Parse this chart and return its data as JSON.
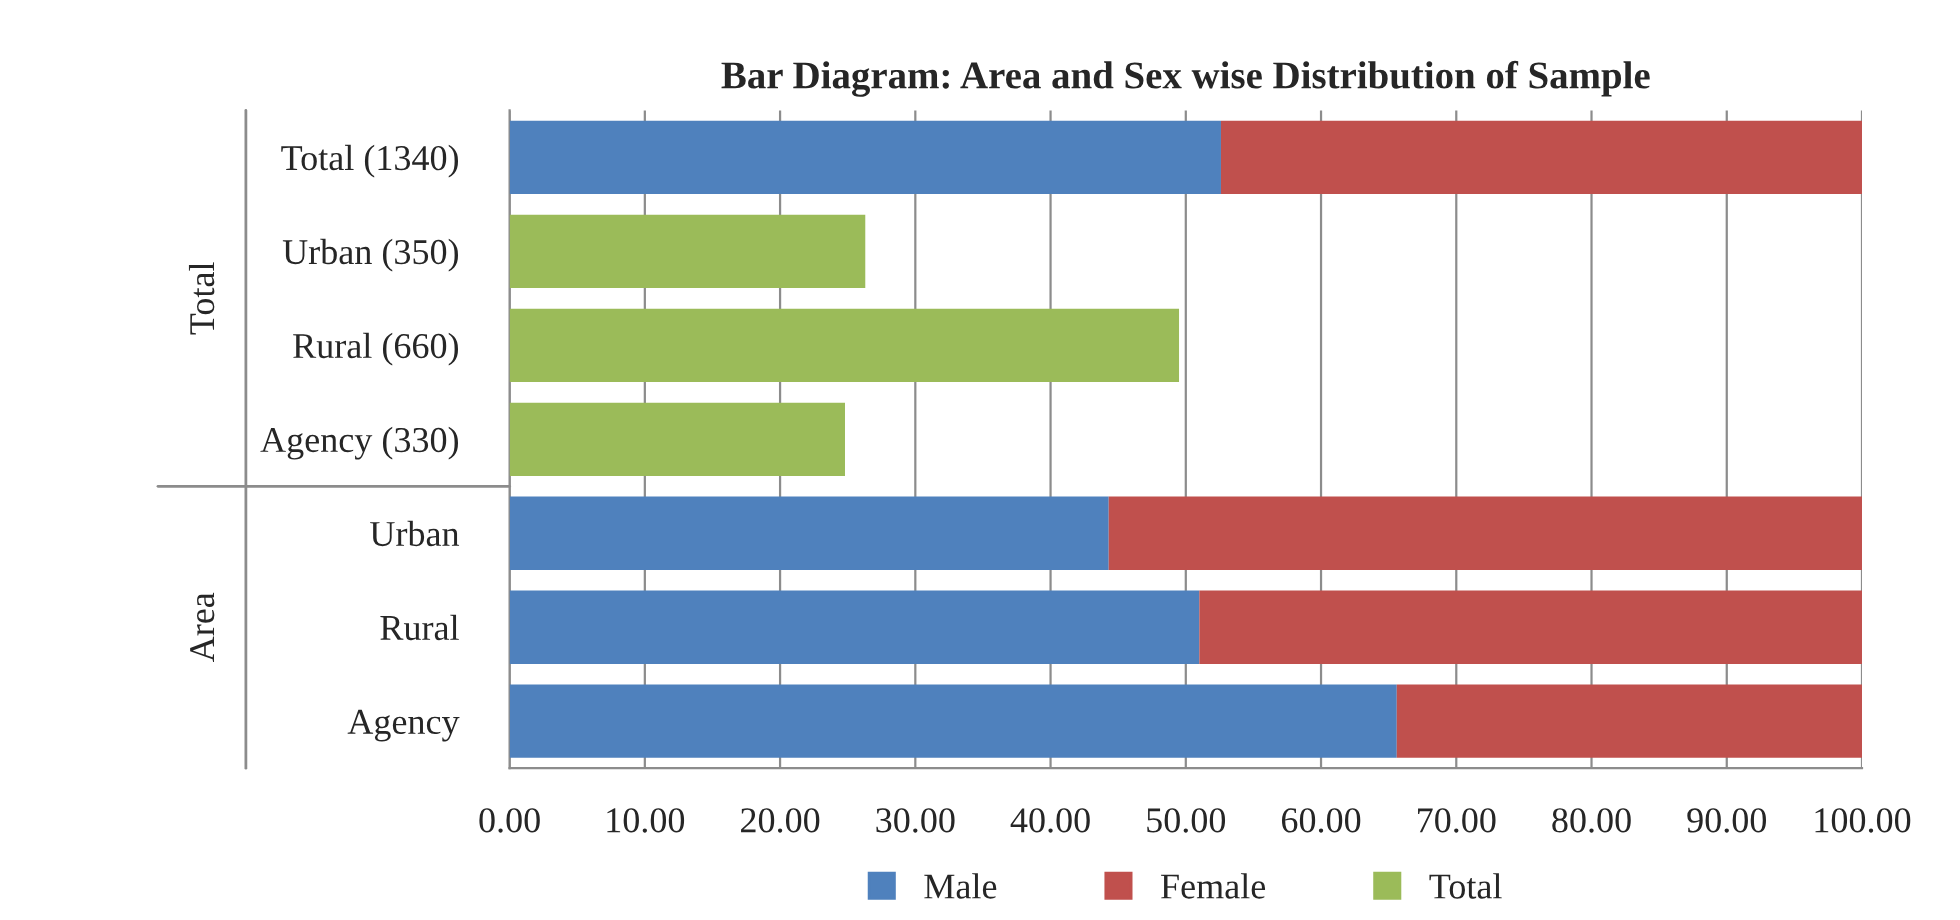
{
  "chart_data": {
    "type": "bar",
    "title": "Bar Diagram: Area and Sex wise Distribution of Sample",
    "orientation": "horizontal",
    "stacked": true,
    "categories": [
      "Total (1340)",
      "Urban (350)",
      "Rural (660)",
      "Agency (330)",
      "Urban",
      "Rural",
      "Agency"
    ],
    "series": [
      {
        "name": "Male",
        "color": "#4f81bd",
        "values": [
          52.6,
          null,
          null,
          null,
          44.3,
          51.0,
          65.6
        ]
      },
      {
        "name": "Female",
        "color": "#c0504d",
        "values": [
          47.4,
          null,
          null,
          null,
          55.7,
          49.0,
          34.4
        ]
      },
      {
        "name": "Total",
        "color": "#9bbb59",
        "values": [
          null,
          26.3,
          49.5,
          24.8,
          null,
          null,
          null
        ]
      }
    ],
    "xlim": [
      0,
      100
    ],
    "xticks": [
      {
        "value": 0,
        "label": "0.00"
      },
      {
        "value": 10,
        "label": "10.00"
      },
      {
        "value": 20,
        "label": "20.00"
      },
      {
        "value": 30,
        "label": "30.00"
      },
      {
        "value": 40,
        "label": "40.00"
      },
      {
        "value": 50,
        "label": "50.00"
      },
      {
        "value": 60,
        "label": "60.00"
      },
      {
        "value": 70,
        "label": "70.00"
      },
      {
        "value": 80,
        "label": "80.00"
      },
      {
        "value": 90,
        "label": "90.00"
      },
      {
        "value": 100,
        "label": "100.00"
      }
    ],
    "grid": "x",
    "legend": "bottom",
    "annotations": [
      "Total",
      "Area"
    ]
  }
}
